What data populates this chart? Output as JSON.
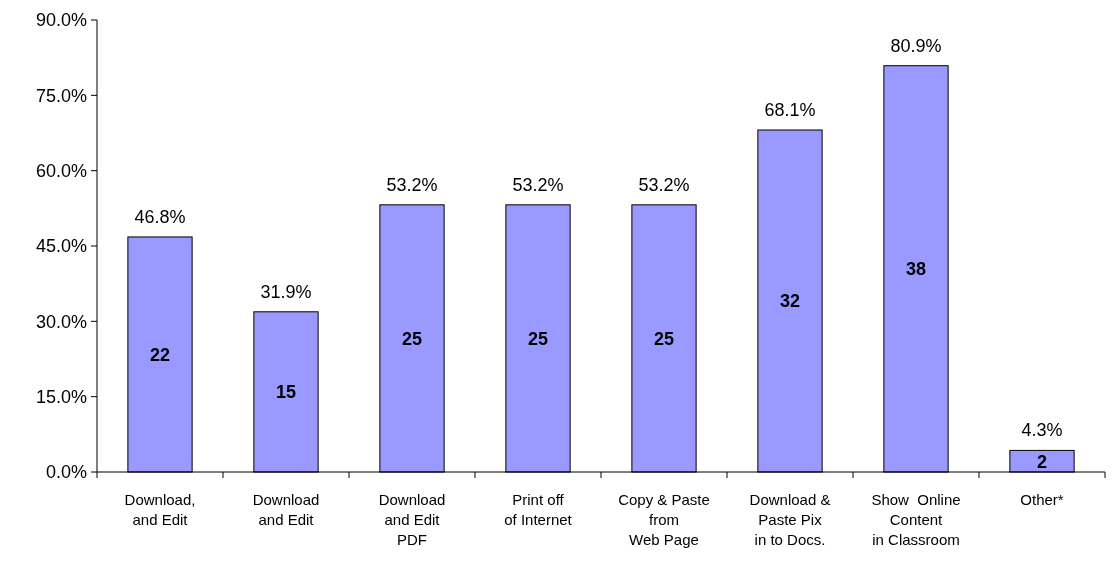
{
  "chart_data": {
    "type": "bar",
    "categories": [
      "Download,\nand Edit",
      "Download\nand Edit",
      "Download\nand Edit\nPDF",
      "Print off\nof Internet",
      "Copy & Paste\nfrom\nWeb Page",
      "Download &\nPaste Pix\nin to Docs.",
      "Show  Online\nContent\nin Classroom",
      "Other*"
    ],
    "values": [
      46.8,
      31.9,
      53.2,
      53.2,
      53.2,
      68.1,
      80.9,
      4.3
    ],
    "value_labels": [
      "46.8%",
      "31.9%",
      "53.2%",
      "53.2%",
      "53.2%",
      "68.1%",
      "80.9%",
      "4.3%"
    ],
    "color": "#9999ff",
    "ylim": [
      0,
      90
    ],
    "yticks": [
      {
        "value": 0,
        "label": "0.0%"
      },
      {
        "value": 15,
        "label": "15.0%"
      },
      {
        "value": 30,
        "label": "30.0%"
      },
      {
        "value": 45,
        "label": "45.0%"
      },
      {
        "value": 60,
        "label": "60.0%"
      },
      {
        "value": 75,
        "label": "75.0%"
      },
      {
        "value": 90,
        "label": "90.0%"
      }
    ],
    "annotations": [
      "22",
      "15",
      "25",
      "25",
      "25",
      "32",
      "38",
      "2"
    ],
    "grid": false
  }
}
